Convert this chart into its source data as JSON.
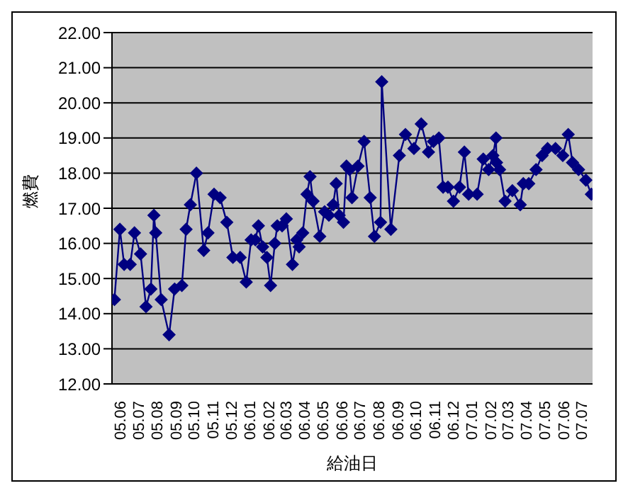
{
  "chart_data": {
    "type": "line",
    "xlabel": "給油日",
    "ylabel": "燃費",
    "x": [
      "2005-06-05",
      "2005-06-14",
      "2005-06-21",
      "2005-07-01",
      "2005-07-08",
      "2005-07-18",
      "2005-07-27",
      "2005-08-04",
      "2005-08-09",
      "2005-08-12",
      "2005-08-21",
      "2005-09-03",
      "2005-09-12",
      "2005-09-24",
      "2005-10-01",
      "2005-10-08",
      "2005-10-18",
      "2005-10-30",
      "2005-11-06",
      "2005-11-16",
      "2005-11-26",
      "2005-12-07",
      "2005-12-17",
      "2005-12-29",
      "2006-01-08",
      "2006-01-16",
      "2006-01-23",
      "2006-01-28",
      "2006-02-04",
      "2006-02-11",
      "2006-02-17",
      "2006-02-24",
      "2006-02-28",
      "2006-03-08",
      "2006-03-15",
      "2006-03-25",
      "2006-04-01",
      "2006-04-05",
      "2006-04-11",
      "2006-04-18",
      "2006-04-23",
      "2006-04-28",
      "2006-05-09",
      "2006-05-17",
      "2006-05-24",
      "2006-05-31",
      "2006-06-05",
      "2006-06-10",
      "2006-06-17",
      "2006-06-22",
      "2006-06-27",
      "2006-07-01",
      "2006-07-11",
      "2006-07-21",
      "2006-07-31",
      "2006-08-07",
      "2006-08-17",
      "2006-08-19",
      "2006-09-03",
      "2006-09-17",
      "2006-09-27",
      "2006-10-11",
      "2006-10-23",
      "2006-11-04",
      "2006-11-12",
      "2006-11-21",
      "2006-11-28",
      "2006-12-06",
      "2006-12-15",
      "2006-12-25",
      "2007-01-02",
      "2007-01-09",
      "2007-01-23",
      "2007-02-02",
      "2007-02-11",
      "2007-02-18",
      "2007-02-23",
      "2007-02-24",
      "2007-03-01",
      "2007-03-10",
      "2007-03-22",
      "2007-04-04",
      "2007-04-09",
      "2007-04-18",
      "2007-04-30",
      "2007-05-10",
      "2007-05-19",
      "2007-06-01",
      "2007-06-13",
      "2007-06-22",
      "2007-06-29",
      "2007-07-09",
      "2007-07-21",
      "2007-07-30"
    ],
    "series": [
      {
        "color": "#000080",
        "values": [
          14.4,
          16.4,
          15.4,
          15.4,
          16.3,
          15.7,
          14.2,
          14.7,
          16.8,
          16.3,
          14.4,
          13.4,
          14.7,
          14.8,
          16.4,
          17.1,
          18.0,
          15.8,
          16.3,
          17.4,
          17.3,
          16.6,
          15.6,
          15.6,
          14.9,
          16.1,
          16.1,
          16.5,
          15.9,
          15.6,
          14.8,
          16.0,
          16.5,
          16.5,
          16.7,
          15.4,
          16.1,
          15.9,
          16.3,
          17.4,
          17.9,
          17.2,
          16.2,
          16.9,
          16.8,
          17.1,
          17.7,
          16.8,
          16.6,
          18.2,
          18.1,
          17.3,
          18.2,
          18.9,
          17.3,
          16.2,
          16.6,
          20.6,
          16.4,
          18.5,
          19.1,
          18.7,
          19.4,
          18.6,
          18.9,
          19.0,
          17.6,
          17.6,
          17.2,
          17.6,
          18.6,
          17.4,
          17.4,
          18.4,
          18.1,
          18.5,
          19.0,
          18.3,
          18.1,
          17.2,
          17.5,
          17.1,
          17.7,
          17.7,
          18.1,
          18.5,
          18.7,
          18.7,
          18.5,
          19.1,
          18.3,
          18.1,
          17.8,
          17.4
        ]
      }
    ],
    "xlim": [
      "2005-06-01",
      "2007-08-01"
    ],
    "xticks": [
      {
        "value": "2005-06-16",
        "label": "05.06"
      },
      {
        "value": "2005-07-16",
        "label": "05.07"
      },
      {
        "value": "2005-08-16",
        "label": "05.08"
      },
      {
        "value": "2005-09-16",
        "label": "05.09"
      },
      {
        "value": "2005-10-16",
        "label": "05.10"
      },
      {
        "value": "2005-11-16",
        "label": "05.11"
      },
      {
        "value": "2005-12-16",
        "label": "05.12"
      },
      {
        "value": "2006-01-16",
        "label": "06.01"
      },
      {
        "value": "2006-02-16",
        "label": "06.02"
      },
      {
        "value": "2006-03-16",
        "label": "06.03"
      },
      {
        "value": "2006-04-16",
        "label": "06.04"
      },
      {
        "value": "2006-05-16",
        "label": "06.05"
      },
      {
        "value": "2006-06-16",
        "label": "06.06"
      },
      {
        "value": "2006-07-16",
        "label": "06.07"
      },
      {
        "value": "2006-08-16",
        "label": "06.08"
      },
      {
        "value": "2006-09-16",
        "label": "06.09"
      },
      {
        "value": "2006-10-16",
        "label": "06.10"
      },
      {
        "value": "2006-11-16",
        "label": "06.11"
      },
      {
        "value": "2006-12-16",
        "label": "06.12"
      },
      {
        "value": "2007-01-16",
        "label": "07.01"
      },
      {
        "value": "2007-02-16",
        "label": "07.02"
      },
      {
        "value": "2007-03-16",
        "label": "07.03"
      },
      {
        "value": "2007-04-16",
        "label": "07.04"
      },
      {
        "value": "2007-05-16",
        "label": "07.05"
      },
      {
        "value": "2007-06-16",
        "label": "07.06"
      },
      {
        "value": "2007-07-16",
        "label": "07.07"
      }
    ],
    "ylim": [
      12,
      22
    ],
    "yticks": [
      {
        "value": 12,
        "label": "12.00"
      },
      {
        "value": 13,
        "label": "13.00"
      },
      {
        "value": 14,
        "label": "14.00"
      },
      {
        "value": 15,
        "label": "15.00"
      },
      {
        "value": 16,
        "label": "16.00"
      },
      {
        "value": 17,
        "label": "17.00"
      },
      {
        "value": 18,
        "label": "18.00"
      },
      {
        "value": 19,
        "label": "19.00"
      },
      {
        "value": 20,
        "label": "20.00"
      },
      {
        "value": 21,
        "label": "21.00"
      },
      {
        "value": 22,
        "label": "22.00"
      }
    ],
    "grid": "y",
    "legend": false,
    "marker": "diamond",
    "line_style": "solid"
  }
}
